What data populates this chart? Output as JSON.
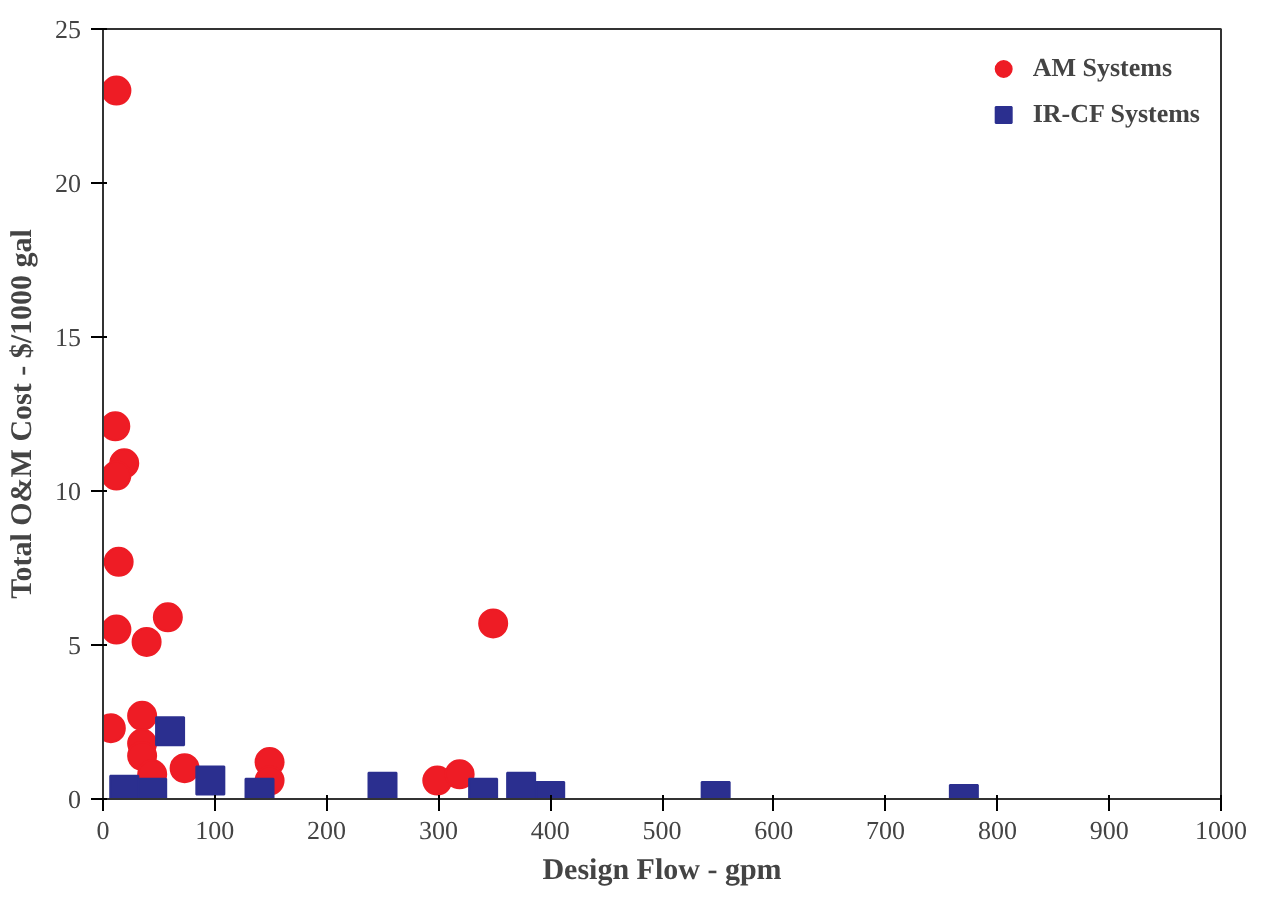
{
  "chart_data": {
    "type": "scatter",
    "xlabel": "Design Flow - gpm",
    "ylabel": "Total O&M Cost - $/1000 gal",
    "xlim": [
      0,
      1000
    ],
    "ylim": [
      0,
      25
    ],
    "xticks": [
      0,
      100,
      200,
      300,
      400,
      500,
      600,
      700,
      800,
      900,
      1000
    ],
    "yticks": [
      0,
      5,
      10,
      15,
      20,
      25
    ],
    "grid": false,
    "legend": "top right",
    "series": [
      {
        "name": "AM Systems",
        "color": "#ee1c25",
        "marker": "circle",
        "x": [
          12,
          11,
          19,
          12,
          14,
          12,
          58,
          39,
          7,
          35,
          35,
          35,
          44,
          73,
          149,
          149,
          299,
          319,
          349
        ],
        "values": [
          23.0,
          12.1,
          10.9,
          10.5,
          7.7,
          5.5,
          5.9,
          5.1,
          2.3,
          2.7,
          1.8,
          1.4,
          0.8,
          1.0,
          1.2,
          0.6,
          0.6,
          0.8,
          5.7
        ]
      },
      {
        "name": "IR-CF Systems",
        "color": "#2b2f8f",
        "marker": "square",
        "x": [
          19,
          44,
          60,
          96,
          140,
          250,
          340,
          374,
          400,
          548,
          770
        ],
        "values": [
          0.3,
          0.2,
          2.2,
          0.6,
          0.2,
          0.4,
          0.2,
          0.4,
          0.1,
          0.1,
          0.0
        ]
      }
    ]
  }
}
